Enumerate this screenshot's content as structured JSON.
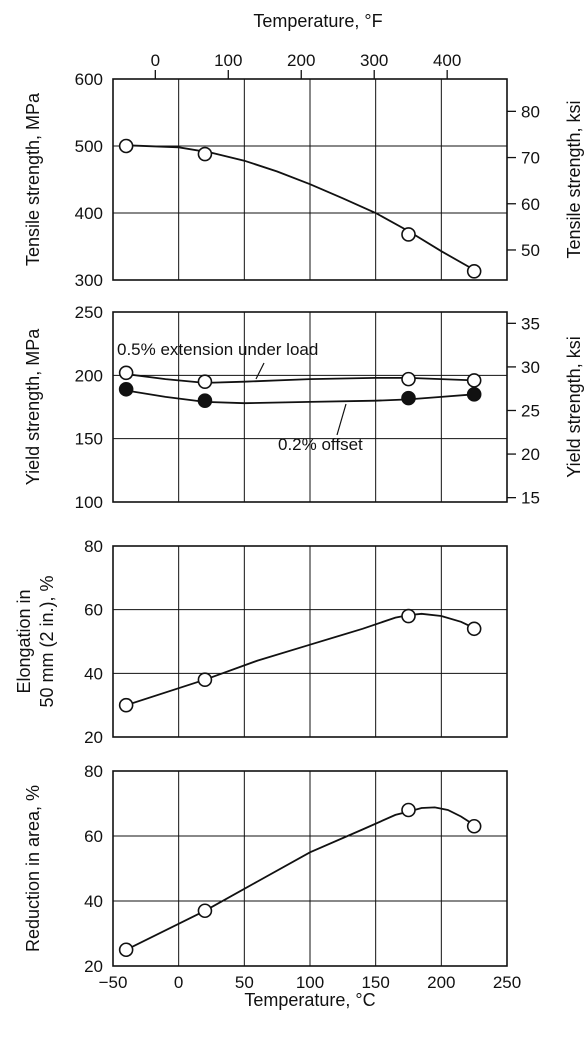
{
  "chart_data": [
    {
      "type": "line",
      "panel": "tensile",
      "top_axis": {
        "label": "Temperature, °F",
        "ticks": [
          0,
          100,
          200,
          300,
          400
        ]
      },
      "xlim": [
        -50,
        250
      ],
      "ylabel": "Tensile strength, MPa",
      "ylim": [
        300,
        600
      ],
      "yticks": [
        300,
        400,
        500,
        600
      ],
      "ylabel_right": "Tensile strength, ksi",
      "yticks_right": [
        50,
        60,
        70,
        80
      ],
      "ylim_right_ksi": [
        43.5,
        87.0
      ],
      "grid": true,
      "series": [
        {
          "marker": "open",
          "x": [
            -40,
            20,
            175,
            225
          ],
          "y": [
            500,
            488,
            368,
            313
          ],
          "curve": [
            [
              -40,
              501
            ],
            [
              0,
              498
            ],
            [
              25,
              490
            ],
            [
              50,
              478
            ],
            [
              75,
              462
            ],
            [
              100,
              443
            ],
            [
              125,
              422
            ],
            [
              150,
              400
            ],
            [
              175,
              373
            ],
            [
              200,
              343
            ],
            [
              225,
              315
            ]
          ]
        }
      ]
    },
    {
      "type": "line",
      "panel": "yield",
      "ylabel": "Yield strength, MPa",
      "ylim": [
        100,
        250
      ],
      "yticks": [
        100,
        150,
        200,
        250
      ],
      "ylabel_right": "Yield strength, ksi",
      "yticks_right": [
        15,
        20,
        25,
        30,
        35
      ],
      "ylim_right_ksi": [
        14.5,
        36.3
      ],
      "grid": true,
      "annotations": [
        "0.5% extension under load",
        "0.2% offset"
      ],
      "series": [
        {
          "name": "0.5% extension under load",
          "marker": "open",
          "x": [
            -40,
            20,
            175,
            225
          ],
          "y": [
            202,
            195,
            197,
            196
          ],
          "curve": [
            [
              -40,
              201
            ],
            [
              -10,
              197
            ],
            [
              20,
              194
            ],
            [
              50,
              195
            ],
            [
              100,
              197
            ],
            [
              150,
              198
            ],
            [
              175,
              198
            ],
            [
              200,
              197
            ],
            [
              225,
              196
            ]
          ]
        },
        {
          "name": "0.2% offset",
          "marker": "filled",
          "x": [
            -40,
            20,
            175,
            225
          ],
          "y": [
            189,
            180,
            182,
            185
          ],
          "curve": [
            [
              -40,
              188
            ],
            [
              -10,
              183
            ],
            [
              20,
              179
            ],
            [
              50,
              178
            ],
            [
              100,
              179
            ],
            [
              150,
              180
            ],
            [
              175,
              181
            ],
            [
              200,
              183
            ],
            [
              225,
              185
            ]
          ]
        }
      ]
    },
    {
      "type": "line",
      "panel": "elongation",
      "ylabel": "Elongation in 50 mm (2 in.), %",
      "ylim": [
        20,
        80
      ],
      "yticks": [
        20,
        40,
        60,
        80
      ],
      "grid": true,
      "series": [
        {
          "marker": "open",
          "x": [
            -40,
            20,
            175,
            225
          ],
          "y": [
            30,
            38,
            58,
            54
          ],
          "curve": [
            [
              -40,
              30
            ],
            [
              20,
              38
            ],
            [
              60,
              44
            ],
            [
              100,
              49
            ],
            [
              140,
              54
            ],
            [
              165,
              57.5
            ],
            [
              175,
              58.3
            ],
            [
              185,
              58.7
            ],
            [
              200,
              58
            ],
            [
              215,
              56.2
            ],
            [
              225,
              54.2
            ]
          ]
        }
      ]
    },
    {
      "type": "line",
      "panel": "reduction",
      "ylabel": "Reduction in area, %",
      "ylim": [
        20,
        80
      ],
      "yticks": [
        20,
        40,
        60,
        80
      ],
      "xlabel": "Temperature, °C",
      "xlim": [
        -50,
        250
      ],
      "xticks": [
        -50,
        0,
        50,
        100,
        150,
        200,
        250
      ],
      "grid": true,
      "series": [
        {
          "marker": "open",
          "x": [
            -40,
            20,
            175,
            225
          ],
          "y": [
            25,
            37,
            68,
            63
          ],
          "curve": [
            [
              -40,
              25
            ],
            [
              20,
              37
            ],
            [
              60,
              46
            ],
            [
              100,
              55
            ],
            [
              140,
              62
            ],
            [
              165,
              66.5
            ],
            [
              175,
              67.5
            ],
            [
              185,
              68.6
            ],
            [
              195,
              68.8
            ],
            [
              205,
              68
            ],
            [
              215,
              66
            ],
            [
              225,
              63.4
            ]
          ]
        }
      ]
    }
  ]
}
